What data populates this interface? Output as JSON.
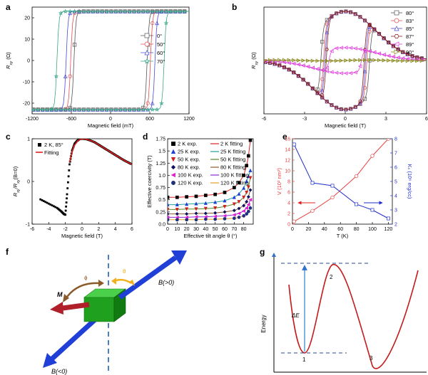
{
  "panel_labels": [
    "a",
    "b",
    "c",
    "d",
    "e",
    "f",
    "g"
  ],
  "chart_data": [
    {
      "panel": "a",
      "type": "line",
      "xlabel": "Magnetic field (mT)",
      "ylabel": "R",
      "ylabel_sub": "xy",
      "ylabel_unit": " (Ω)",
      "xlim": [
        -1200,
        1200
      ],
      "ylim": [
        -25,
        25
      ],
      "xticks": [
        "-1200",
        "-600",
        "0",
        "600",
        "1200"
      ],
      "yticks": [
        "-20",
        "-10",
        "0",
        "10",
        "20"
      ],
      "legend_position": "right",
      "series": [
        {
          "name": "0°",
          "marker": "square",
          "color": "#555555",
          "coercive_field": 560,
          "saturation": 23
        },
        {
          "name": "50°",
          "marker": "circle",
          "color": "#e05050",
          "coercive_field": 610,
          "saturation": 23
        },
        {
          "name": "60°",
          "marker": "triangle",
          "color": "#4b4bd6",
          "coercive_field": 680,
          "saturation": 23
        },
        {
          "name": "70°",
          "marker": "star",
          "color": "#3aa68a",
          "coercive_field": 820,
          "saturation": 23
        }
      ]
    },
    {
      "panel": "b",
      "type": "line",
      "xlabel": "Magnetic field (T)",
      "ylabel": "R",
      "ylabel_sub": "xy",
      "ylabel_unit": " (Ω)",
      "xlim": [
        -6,
        6
      ],
      "ylim": [
        -25,
        25
      ],
      "xticks": [
        "-6",
        "-3",
        "0",
        "3",
        "6"
      ],
      "legend_position": "top-right",
      "series": [
        {
          "name": "80°",
          "marker": "square",
          "color": "#555555",
          "coercive_field": 1.8,
          "saturation": 23
        },
        {
          "name": "83°",
          "marker": "circle",
          "color": "#e05050",
          "coercive_field": 1.6,
          "saturation": 23
        },
        {
          "name": "85°",
          "marker": "triangle",
          "color": "#4b4bd6",
          "coercive_field": 1.5,
          "saturation": 23
        },
        {
          "name": "87°",
          "marker": "hexagon",
          "color": "#8b1a1a",
          "coercive_field": 1.4,
          "saturation": 23
        },
        {
          "name": "89°",
          "marker": "triangle-left",
          "color": "#e040e0",
          "coercive_field": 1.2,
          "saturation": 6
        },
        {
          "name": "90°",
          "marker": "triangle-right",
          "color": "#8a8a20",
          "coercive_field": 0,
          "saturation": 0
        }
      ]
    },
    {
      "panel": "c",
      "type": "line",
      "xlabel": "Magnetic field (T)",
      "ylabel_parts": [
        "R",
        "xy",
        "/R",
        "xy",
        "(B=0)"
      ],
      "xlim": [
        -6,
        6
      ],
      "ylim": [
        -1,
        1
      ],
      "xticks": [
        "-6",
        "-4",
        "-2",
        "0",
        "2",
        "4",
        "6"
      ],
      "yticks": [
        "-1",
        "0",
        "1"
      ],
      "legend_position": "top-left",
      "series": [
        {
          "name": "2 K, 85°",
          "color": "#000000",
          "x": [
            -5,
            -4,
            -3,
            -2.5,
            -2.2,
            -2.0,
            -1.8,
            -1.5,
            -1.2,
            -0.9,
            -0.6,
            -0.3,
            0,
            0.5,
            1,
            1.5,
            2,
            2.5,
            3,
            3.5,
            4,
            4.5,
            5,
            5.5,
            6
          ],
          "y": [
            -0.42,
            -0.52,
            -0.62,
            -0.7,
            -0.76,
            -0.78,
            -0.3,
            0.4,
            0.72,
            0.88,
            0.95,
            0.99,
            1.0,
            0.99,
            0.96,
            0.92,
            0.86,
            0.8,
            0.74,
            0.68,
            0.62,
            0.56,
            0.5,
            0.45,
            0.4
          ]
        },
        {
          "name": "Fitting",
          "color": "#e02020",
          "x": [
            -1.5,
            -1,
            -0.5,
            0,
            0.5,
            1,
            1.5,
            2,
            2.5,
            3,
            3.5,
            4,
            4.5,
            5,
            5.5,
            6
          ],
          "y": [
            0.45,
            0.82,
            0.96,
            1.0,
            0.99,
            0.96,
            0.92,
            0.86,
            0.8,
            0.74,
            0.68,
            0.62,
            0.56,
            0.5,
            0.45,
            0.4
          ]
        }
      ]
    },
    {
      "panel": "d",
      "type": "scatter",
      "xlabel": "Effective tilt angle θ (°)",
      "ylabel": "Effective coercivity (T)",
      "xlim": [
        0,
        90
      ],
      "ylim": [
        0,
        1.75
      ],
      "xticks": [
        "0",
        "10",
        "20",
        "30",
        "40",
        "50",
        "60",
        "70",
        "80"
      ],
      "yticks": [
        "0.0",
        "0.25",
        "0.5",
        "0.75",
        "1.0",
        "1.25",
        "1.5",
        "1.75"
      ],
      "x": [
        0,
        10,
        20,
        30,
        40,
        50,
        60,
        70,
        75,
        80,
        83,
        85,
        87
      ],
      "series": [
        {
          "name": "2 K exp.",
          "fit_name": "2 K fitting",
          "marker": "square",
          "color": "#000000",
          "fit_color": "#e02020",
          "y": [
            0.55,
            0.55,
            0.56,
            0.57,
            0.59,
            0.61,
            0.65,
            0.75,
            0.85,
            1.0,
            1.2,
            1.4,
            1.72
          ]
        },
        {
          "name": "25 K exp.",
          "fit_name": "25 K fitting",
          "marker": "triangle",
          "color": "#1f3fd6",
          "fit_color": "#1fa0a0",
          "y": [
            0.4,
            0.4,
            0.41,
            0.42,
            0.43,
            0.45,
            0.48,
            0.55,
            0.62,
            0.74,
            0.88,
            0.98,
            1.1
          ]
        },
        {
          "name": "50 K exp.",
          "fit_name": "50 K fitting",
          "marker": "triangle-down",
          "color": "#d02020",
          "fit_color": "#5a8a2a",
          "y": [
            0.3,
            0.3,
            0.31,
            0.31,
            0.32,
            0.33,
            0.36,
            0.41,
            0.46,
            0.55,
            0.65,
            0.76,
            0.95
          ]
        },
        {
          "name": "80 K exp.",
          "fit_name": "80 K fitting",
          "marker": "diamond",
          "color": "#101060",
          "fit_color": "#8b5a2a",
          "y": [
            0.21,
            0.21,
            0.21,
            0.22,
            0.22,
            0.23,
            0.25,
            0.28,
            0.32,
            0.38,
            0.46,
            0.56,
            0.7
          ]
        },
        {
          "name": "100 K exp.",
          "fit_name": "100 K fitting",
          "marker": "triangle-left",
          "color": "#e020d0",
          "fit_color": "#8a2ad6",
          "y": [
            0.14,
            0.14,
            0.14,
            0.15,
            0.15,
            0.16,
            0.17,
            0.19,
            0.22,
            0.27,
            0.33,
            0.4,
            0.5
          ]
        },
        {
          "name": "120 K exp.",
          "fit_name": "120 K fitting",
          "marker": "circle",
          "color": "#203080",
          "fit_color": "#e8a020",
          "y": [
            0.09,
            0.09,
            0.09,
            0.09,
            0.1,
            0.1,
            0.11,
            0.12,
            0.14,
            0.17,
            0.21,
            0.26,
            0.33
          ]
        }
      ]
    },
    {
      "panel": "e",
      "type": "line",
      "xlabel": "T (K)",
      "ylabel_left": "V (10² nm³)",
      "ylabel_right": "Kₛ (10⁶ erg/cc)",
      "xlim": [
        0,
        125
      ],
      "ylim_left": [
        0,
        16
      ],
      "ylim_right": [
        2,
        8
      ],
      "xticks": [
        "0",
        "20",
        "40",
        "60",
        "80",
        "100",
        "120"
      ],
      "yticks_left": [
        "0",
        "2",
        "4",
        "6",
        "8",
        "10",
        "12",
        "14",
        "16"
      ],
      "yticks_right": [
        "2",
        "3",
        "4",
        "5",
        "6",
        "7",
        "8"
      ],
      "x": [
        2,
        25,
        50,
        80,
        100,
        120
      ],
      "series": [
        {
          "name": "V",
          "axis": "left",
          "color": "#e84040",
          "y": [
            0.5,
            2.5,
            5.0,
            9.0,
            12.8,
            16.0
          ]
        },
        {
          "name": "Kₛ",
          "axis": "right",
          "color": "#2030c8",
          "y": [
            7.6,
            4.9,
            4.7,
            3.4,
            3.0,
            2.4
          ]
        }
      ]
    },
    {
      "panel": "g",
      "type": "line",
      "ylabel": "Energy",
      "annotation": "ΔE",
      "point_labels": [
        "1",
        "2",
        "3"
      ]
    }
  ],
  "diagram_f": {
    "labels": {
      "m": "M",
      "phi": "ϕ",
      "theta": "θ",
      "b_pos": "B(>0)",
      "b_neg": "B(<0)"
    },
    "colors": {
      "cube": "#1fa01f",
      "field_arrow": "#1f3fd6",
      "moment_arrow": "#b0202a",
      "phi_arc": "#8b5a2a",
      "theta_arc": "#f0b020",
      "axis": "#4a80c0"
    }
  }
}
